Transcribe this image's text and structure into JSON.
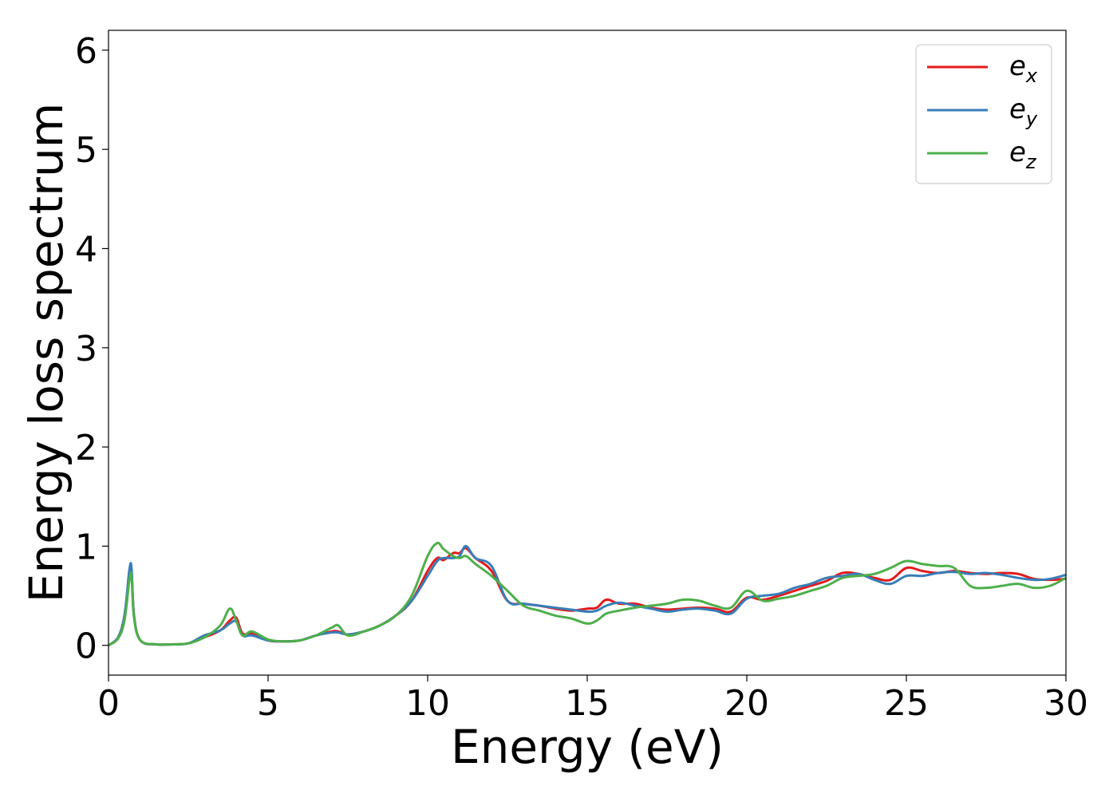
{
  "chart_data": {
    "type": "line",
    "xlabel": "Energy (eV)",
    "ylabel": "Energy loss spectrum",
    "xlim": [
      0,
      30
    ],
    "ylim": [
      -0.3,
      6.2
    ],
    "xticks": [
      0,
      5,
      10,
      15,
      20,
      25,
      30
    ],
    "xtick_labels": [
      "0",
      "5",
      "10",
      "15",
      "20",
      "25",
      "30"
    ],
    "yticks": [
      0,
      1,
      2,
      3,
      4,
      5,
      6
    ],
    "ytick_labels": [
      "0",
      "1",
      "2",
      "3",
      "4",
      "5",
      "6"
    ],
    "grid": false,
    "legend_position": "top-right",
    "series": [
      {
        "name": "e_x",
        "legend_base": "e",
        "legend_sub": "x",
        "color": "#e41a1c",
        "x": [
          0,
          0.3,
          0.5,
          0.65,
          0.72,
          0.8,
          1,
          1.5,
          2,
          2.5,
          3,
          3.5,
          3.8,
          4,
          4.2,
          4.5,
          5,
          5.5,
          6,
          6.5,
          7,
          7.2,
          7.5,
          8,
          8.5,
          9,
          9.5,
          10,
          10.3,
          10.5,
          10.8,
          11,
          11.2,
          11.5,
          12,
          12.5,
          13,
          13.5,
          14,
          14.5,
          15,
          15.3,
          15.6,
          16,
          16.5,
          17,
          17.5,
          18,
          18.5,
          19,
          19.5,
          20,
          20.5,
          21,
          21.5,
          22,
          22.5,
          23,
          23.5,
          24,
          24.5,
          25,
          25.5,
          26,
          26.5,
          27,
          27.5,
          28,
          28.5,
          29,
          29.5,
          30
        ],
        "y": [
          0,
          0.08,
          0.3,
          0.7,
          0.75,
          0.3,
          0.05,
          0.01,
          0.01,
          0.02,
          0.08,
          0.15,
          0.25,
          0.28,
          0.12,
          0.12,
          0.05,
          0.04,
          0.05,
          0.1,
          0.14,
          0.14,
          0.11,
          0.14,
          0.2,
          0.3,
          0.45,
          0.75,
          0.88,
          0.86,
          0.93,
          0.93,
          0.98,
          0.88,
          0.75,
          0.45,
          0.42,
          0.4,
          0.37,
          0.35,
          0.37,
          0.38,
          0.46,
          0.42,
          0.42,
          0.38,
          0.36,
          0.37,
          0.38,
          0.37,
          0.34,
          0.48,
          0.46,
          0.5,
          0.55,
          0.6,
          0.65,
          0.73,
          0.72,
          0.68,
          0.66,
          0.78,
          0.75,
          0.73,
          0.75,
          0.73,
          0.72,
          0.73,
          0.72,
          0.67,
          0.66,
          0.67
        ]
      },
      {
        "name": "e_y",
        "legend_base": "e",
        "legend_sub": "y",
        "color": "#377eb8",
        "x": [
          0,
          0.3,
          0.5,
          0.65,
          0.72,
          0.8,
          1,
          1.5,
          2,
          2.5,
          3,
          3.5,
          3.8,
          4,
          4.2,
          4.5,
          5,
          5.5,
          6,
          6.5,
          7,
          7.2,
          7.5,
          8,
          8.5,
          9,
          9.5,
          10,
          10.3,
          10.5,
          10.8,
          11,
          11.2,
          11.5,
          12,
          12.5,
          13,
          13.5,
          14,
          14.5,
          15,
          15.3,
          15.6,
          16,
          16.5,
          17,
          17.5,
          18,
          18.5,
          19,
          19.5,
          20,
          20.5,
          21,
          21.5,
          22,
          22.5,
          23,
          23.5,
          24,
          24.5,
          25,
          25.5,
          26,
          26.5,
          27,
          27.5,
          28,
          28.5,
          29,
          29.5,
          30
        ],
        "y": [
          0,
          0.08,
          0.3,
          0.75,
          0.78,
          0.3,
          0.05,
          0.01,
          0.01,
          0.02,
          0.1,
          0.15,
          0.22,
          0.24,
          0.1,
          0.1,
          0.05,
          0.04,
          0.05,
          0.1,
          0.13,
          0.13,
          0.11,
          0.14,
          0.2,
          0.3,
          0.45,
          0.7,
          0.85,
          0.88,
          0.88,
          0.9,
          1.0,
          0.88,
          0.8,
          0.45,
          0.42,
          0.4,
          0.38,
          0.36,
          0.34,
          0.35,
          0.4,
          0.43,
          0.4,
          0.37,
          0.34,
          0.36,
          0.37,
          0.35,
          0.32,
          0.47,
          0.5,
          0.52,
          0.58,
          0.62,
          0.68,
          0.7,
          0.72,
          0.66,
          0.62,
          0.7,
          0.7,
          0.73,
          0.74,
          0.72,
          0.73,
          0.71,
          0.68,
          0.66,
          0.67,
          0.71
        ]
      },
      {
        "name": "e_z",
        "legend_base": "e",
        "legend_sub": "z",
        "color": "#4daf4a",
        "x": [
          0,
          0.3,
          0.5,
          0.65,
          0.72,
          0.8,
          1,
          1.5,
          2,
          2.5,
          3,
          3.5,
          3.8,
          4,
          4.2,
          4.5,
          5,
          5.5,
          6,
          6.5,
          7,
          7.2,
          7.5,
          8,
          8.5,
          9,
          9.5,
          10,
          10.3,
          10.5,
          10.8,
          11,
          11.2,
          11.5,
          12,
          12.5,
          13,
          13.5,
          14,
          14.5,
          15,
          15.3,
          15.6,
          16,
          16.5,
          17,
          17.5,
          18,
          18.5,
          19,
          19.5,
          20,
          20.5,
          21,
          21.5,
          22,
          22.5,
          23,
          23.5,
          24,
          24.5,
          25,
          25.5,
          26,
          26.5,
          27,
          27.5,
          28,
          28.5,
          29,
          29.5,
          30
        ],
        "y": [
          0,
          0.07,
          0.25,
          0.65,
          0.7,
          0.28,
          0.05,
          0.01,
          0.01,
          0.02,
          0.08,
          0.2,
          0.37,
          0.25,
          0.1,
          0.14,
          0.06,
          0.04,
          0.05,
          0.1,
          0.18,
          0.2,
          0.1,
          0.14,
          0.2,
          0.3,
          0.5,
          0.9,
          1.03,
          0.97,
          0.9,
          0.88,
          0.9,
          0.82,
          0.7,
          0.55,
          0.4,
          0.35,
          0.3,
          0.27,
          0.22,
          0.25,
          0.32,
          0.35,
          0.38,
          0.4,
          0.42,
          0.46,
          0.45,
          0.4,
          0.38,
          0.55,
          0.45,
          0.47,
          0.5,
          0.55,
          0.6,
          0.68,
          0.7,
          0.72,
          0.78,
          0.85,
          0.82,
          0.8,
          0.78,
          0.6,
          0.58,
          0.6,
          0.62,
          0.58,
          0.6,
          0.68
        ]
      }
    ]
  }
}
